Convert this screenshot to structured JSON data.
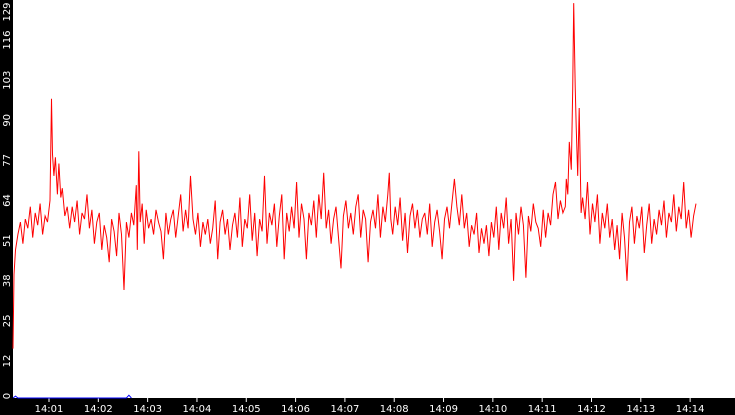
{
  "chart_data": {
    "type": "line",
    "title": "",
    "xlabel": "",
    "ylabel": "",
    "background": "#ffffff",
    "axis_color": "#000000",
    "tick_label_color": "#ffffff",
    "grid": false,
    "legend": "none",
    "ylim": [
      0,
      129
    ],
    "y_ticks": [
      "0",
      "12",
      "25",
      "38",
      "51",
      "64",
      "77",
      "90",
      "103",
      "116",
      "129"
    ],
    "x_tick_labels": [
      "14:01",
      "14:02",
      "14:03",
      "14:04",
      "14:05",
      "14:06",
      "14:07",
      "14:08",
      "14:09",
      "14:10",
      "14:11",
      "14:12",
      "14:13",
      "14:14"
    ],
    "x_range_minutes": [
      14.27,
      14.91
    ],
    "series": [
      {
        "color": "#ff0000",
        "points": [
          [
            0.0,
            16
          ],
          [
            0.02,
            40
          ],
          [
            0.05,
            48
          ],
          [
            0.1,
            53
          ],
          [
            0.15,
            57
          ],
          [
            0.2,
            50
          ],
          [
            0.25,
            58
          ],
          [
            0.3,
            55
          ],
          [
            0.35,
            62
          ],
          [
            0.4,
            52
          ],
          [
            0.45,
            60
          ],
          [
            0.5,
            56
          ],
          [
            0.55,
            63
          ],
          [
            0.6,
            53
          ],
          [
            0.65,
            59
          ],
          [
            0.7,
            57
          ],
          [
            0.75,
            64
          ],
          [
            0.78,
            97
          ],
          [
            0.8,
            79
          ],
          [
            0.83,
            72
          ],
          [
            0.86,
            78
          ],
          [
            0.9,
            66
          ],
          [
            0.93,
            76
          ],
          [
            0.97,
            65
          ],
          [
            1.0,
            68
          ],
          [
            1.05,
            59
          ],
          [
            1.1,
            62
          ],
          [
            1.15,
            55
          ],
          [
            1.2,
            62
          ],
          [
            1.25,
            57
          ],
          [
            1.3,
            64
          ],
          [
            1.35,
            53
          ],
          [
            1.4,
            60
          ],
          [
            1.45,
            58
          ],
          [
            1.5,
            66
          ],
          [
            1.55,
            55
          ],
          [
            1.6,
            61
          ],
          [
            1.65,
            50
          ],
          [
            1.7,
            57
          ],
          [
            1.75,
            60
          ],
          [
            1.8,
            48
          ],
          [
            1.85,
            56
          ],
          [
            1.9,
            52
          ],
          [
            1.95,
            44
          ],
          [
            2.0,
            58
          ],
          [
            2.05,
            54
          ],
          [
            2.1,
            46
          ],
          [
            2.15,
            60
          ],
          [
            2.2,
            53
          ],
          [
            2.25,
            35
          ],
          [
            2.3,
            57
          ],
          [
            2.35,
            52
          ],
          [
            2.4,
            60
          ],
          [
            2.45,
            56
          ],
          [
            2.5,
            69
          ],
          [
            2.52,
            48
          ],
          [
            2.55,
            80
          ],
          [
            2.58,
            57
          ],
          [
            2.62,
            63
          ],
          [
            2.66,
            50
          ],
          [
            2.7,
            61
          ],
          [
            2.75,
            55
          ],
          [
            2.8,
            58
          ],
          [
            2.85,
            53
          ],
          [
            2.9,
            61
          ],
          [
            2.95,
            57
          ],
          [
            3.0,
            54
          ],
          [
            3.05,
            45
          ],
          [
            3.1,
            60
          ],
          [
            3.15,
            53
          ],
          [
            3.2,
            58
          ],
          [
            3.25,
            61
          ],
          [
            3.3,
            52
          ],
          [
            3.35,
            59
          ],
          [
            3.4,
            66
          ],
          [
            3.45,
            54
          ],
          [
            3.5,
            61
          ],
          [
            3.55,
            55
          ],
          [
            3.6,
            72
          ],
          [
            3.65,
            58
          ],
          [
            3.7,
            53
          ],
          [
            3.75,
            60
          ],
          [
            3.8,
            49
          ],
          [
            3.85,
            57
          ],
          [
            3.9,
            53
          ],
          [
            3.95,
            58
          ],
          [
            4.0,
            50
          ],
          [
            4.05,
            55
          ],
          [
            4.1,
            64
          ],
          [
            4.15,
            45
          ],
          [
            4.2,
            57
          ],
          [
            4.25,
            61
          ],
          [
            4.3,
            53
          ],
          [
            4.35,
            58
          ],
          [
            4.4,
            48
          ],
          [
            4.45,
            56
          ],
          [
            4.5,
            60
          ],
          [
            4.55,
            52
          ],
          [
            4.6,
            65
          ],
          [
            4.65,
            49
          ],
          [
            4.7,
            58
          ],
          [
            4.75,
            55
          ],
          [
            4.8,
            66
          ],
          [
            4.85,
            51
          ],
          [
            4.9,
            60
          ],
          [
            4.95,
            46
          ],
          [
            5.0,
            58
          ],
          [
            5.05,
            54
          ],
          [
            5.1,
            72
          ],
          [
            5.15,
            50
          ],
          [
            5.2,
            60
          ],
          [
            5.25,
            56
          ],
          [
            5.3,
            63
          ],
          [
            5.35,
            49
          ],
          [
            5.4,
            59
          ],
          [
            5.45,
            66
          ],
          [
            5.5,
            45
          ],
          [
            5.55,
            60
          ],
          [
            5.6,
            54
          ],
          [
            5.65,
            62
          ],
          [
            5.7,
            55
          ],
          [
            5.75,
            70
          ],
          [
            5.8,
            52
          ],
          [
            5.85,
            63
          ],
          [
            5.9,
            58
          ],
          [
            5.95,
            45
          ],
          [
            6.0,
            60
          ],
          [
            6.05,
            56
          ],
          [
            6.1,
            64
          ],
          [
            6.15,
            52
          ],
          [
            6.2,
            66
          ],
          [
            6.25,
            58
          ],
          [
            6.3,
            73
          ],
          [
            6.35,
            55
          ],
          [
            6.4,
            61
          ],
          [
            6.45,
            50
          ],
          [
            6.5,
            58
          ],
          [
            6.55,
            62
          ],
          [
            6.6,
            52
          ],
          [
            6.65,
            42
          ],
          [
            6.7,
            59
          ],
          [
            6.75,
            64
          ],
          [
            6.8,
            55
          ],
          [
            6.85,
            60
          ],
          [
            6.9,
            53
          ],
          [
            6.95,
            62
          ],
          [
            7.0,
            66
          ],
          [
            7.05,
            52
          ],
          [
            7.1,
            61
          ],
          [
            7.15,
            58
          ],
          [
            7.2,
            44
          ],
          [
            7.25,
            57
          ],
          [
            7.3,
            61
          ],
          [
            7.35,
            55
          ],
          [
            7.4,
            66
          ],
          [
            7.45,
            52
          ],
          [
            7.5,
            62
          ],
          [
            7.55,
            57
          ],
          [
            7.6,
            66
          ],
          [
            7.63,
            73
          ],
          [
            7.66,
            58
          ],
          [
            7.7,
            53
          ],
          [
            7.75,
            62
          ],
          [
            7.8,
            56
          ],
          [
            7.85,
            65
          ],
          [
            7.9,
            51
          ],
          [
            7.95,
            60
          ],
          [
            8.0,
            47
          ],
          [
            8.05,
            59
          ],
          [
            8.1,
            63
          ],
          [
            8.15,
            55
          ],
          [
            8.2,
            61
          ],
          [
            8.25,
            52
          ],
          [
            8.3,
            58
          ],
          [
            8.35,
            60
          ],
          [
            8.4,
            53
          ],
          [
            8.45,
            63
          ],
          [
            8.5,
            49
          ],
          [
            8.55,
            57
          ],
          [
            8.6,
            61
          ],
          [
            8.65,
            54
          ],
          [
            8.7,
            45
          ],
          [
            8.75,
            58
          ],
          [
            8.8,
            62
          ],
          [
            8.85,
            55
          ],
          [
            8.9,
            63
          ],
          [
            8.95,
            71
          ],
          [
            9.0,
            62
          ],
          [
            9.05,
            56
          ],
          [
            9.1,
            66
          ],
          [
            9.15,
            55
          ],
          [
            9.2,
            60
          ],
          [
            9.25,
            49
          ],
          [
            9.3,
            56
          ],
          [
            9.35,
            53
          ],
          [
            9.4,
            60
          ],
          [
            9.45,
            47
          ],
          [
            9.5,
            55
          ],
          [
            9.55,
            50
          ],
          [
            9.6,
            56
          ],
          [
            9.65,
            46
          ],
          [
            9.7,
            57
          ],
          [
            9.75,
            52
          ],
          [
            9.8,
            62
          ],
          [
            9.85,
            48
          ],
          [
            9.9,
            60
          ],
          [
            9.95,
            55
          ],
          [
            10.0,
            65
          ],
          [
            10.05,
            50
          ],
          [
            10.1,
            58
          ],
          [
            10.15,
            38
          ],
          [
            10.2,
            60
          ],
          [
            10.25,
            53
          ],
          [
            10.3,
            62
          ],
          [
            10.35,
            56
          ],
          [
            10.4,
            39
          ],
          [
            10.45,
            59
          ],
          [
            10.5,
            54
          ],
          [
            10.55,
            63
          ],
          [
            10.6,
            57
          ],
          [
            10.65,
            55
          ],
          [
            10.7,
            49
          ],
          [
            10.75,
            61
          ],
          [
            10.8,
            52
          ],
          [
            10.85,
            60
          ],
          [
            10.9,
            56
          ],
          [
            10.95,
            66
          ],
          [
            11.0,
            70
          ],
          [
            11.05,
            58
          ],
          [
            11.1,
            64
          ],
          [
            11.15,
            60
          ],
          [
            11.2,
            62
          ],
          [
            11.22,
            71
          ],
          [
            11.25,
            66
          ],
          [
            11.28,
            83
          ],
          [
            11.32,
            74
          ],
          [
            11.35,
            100
          ],
          [
            11.37,
            128
          ],
          [
            11.4,
            101
          ],
          [
            11.42,
            88
          ],
          [
            11.45,
            72
          ],
          [
            11.48,
            94
          ],
          [
            11.52,
            60
          ],
          [
            11.55,
            65
          ],
          [
            11.6,
            58
          ],
          [
            11.65,
            70
          ],
          [
            11.7,
            53
          ],
          [
            11.75,
            63
          ],
          [
            11.8,
            57
          ],
          [
            11.85,
            66
          ],
          [
            11.9,
            50
          ],
          [
            11.95,
            60
          ],
          [
            12.0,
            55
          ],
          [
            12.05,
            63
          ],
          [
            12.1,
            52
          ],
          [
            12.15,
            58
          ],
          [
            12.2,
            48
          ],
          [
            12.25,
            56
          ],
          [
            12.3,
            45
          ],
          [
            12.35,
            60
          ],
          [
            12.4,
            52
          ],
          [
            12.45,
            38
          ],
          [
            12.5,
            57
          ],
          [
            12.55,
            62
          ],
          [
            12.6,
            50
          ],
          [
            12.65,
            59
          ],
          [
            12.7,
            55
          ],
          [
            12.75,
            62
          ],
          [
            12.8,
            47
          ],
          [
            12.85,
            56
          ],
          [
            12.9,
            63
          ],
          [
            12.95,
            50
          ],
          [
            13.0,
            58
          ],
          [
            13.05,
            53
          ],
          [
            13.1,
            61
          ],
          [
            13.15,
            56
          ],
          [
            13.2,
            64
          ],
          [
            13.25,
            52
          ],
          [
            13.3,
            60
          ],
          [
            13.35,
            57
          ],
          [
            13.4,
            66
          ],
          [
            13.45,
            54
          ],
          [
            13.5,
            62
          ],
          [
            13.55,
            58
          ],
          [
            13.6,
            70
          ],
          [
            13.65,
            55
          ],
          [
            13.7,
            61
          ],
          [
            13.75,
            52
          ],
          [
            13.8,
            59
          ],
          [
            13.85,
            63
          ]
        ]
      },
      {
        "color": "#0000ff",
        "points": [
          [
            0.0,
            0
          ],
          [
            0.05,
            0.6
          ],
          [
            0.1,
            0
          ],
          [
            2.3,
            0
          ],
          [
            2.35,
            0.9
          ],
          [
            2.4,
            0
          ]
        ]
      }
    ]
  }
}
